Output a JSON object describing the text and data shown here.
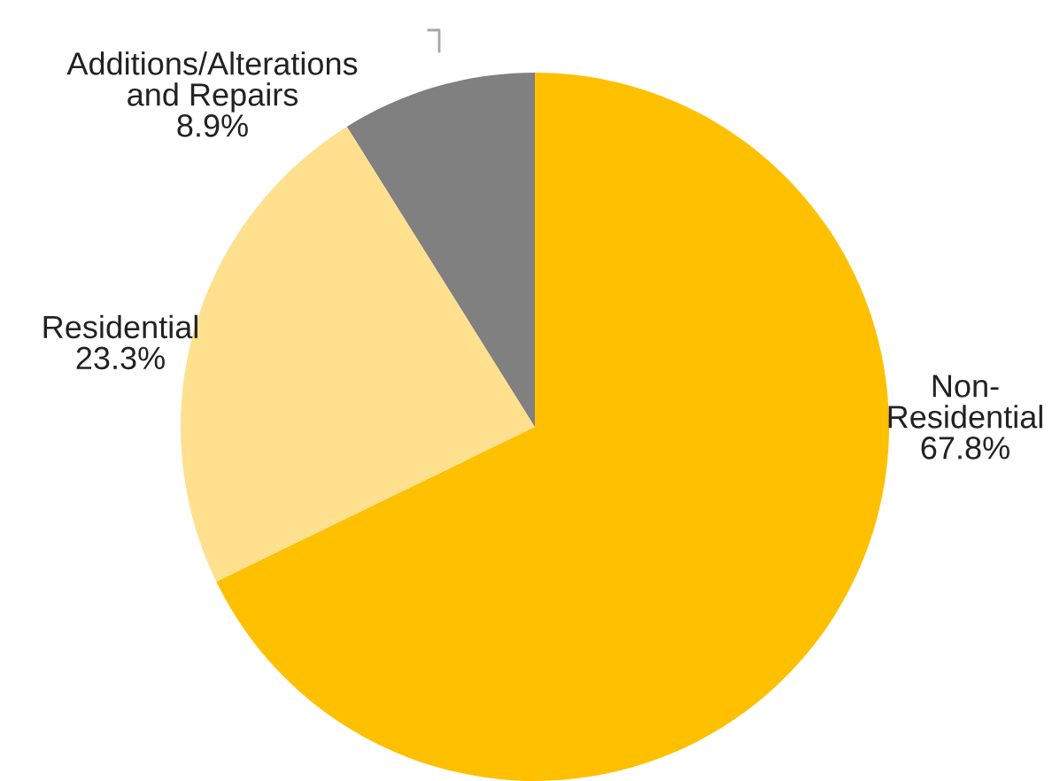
{
  "chart_data": {
    "type": "pie",
    "categories": [
      "Non-\nResidential",
      "Residential",
      "Additions/Alterations\nand Repairs"
    ],
    "values": [
      67.8,
      23.3,
      8.9
    ],
    "value_labels": [
      "67.8%",
      "23.3%",
      "8.9%"
    ],
    "colors": [
      "#ffc000",
      "#ffe08f",
      "#808080"
    ]
  }
}
